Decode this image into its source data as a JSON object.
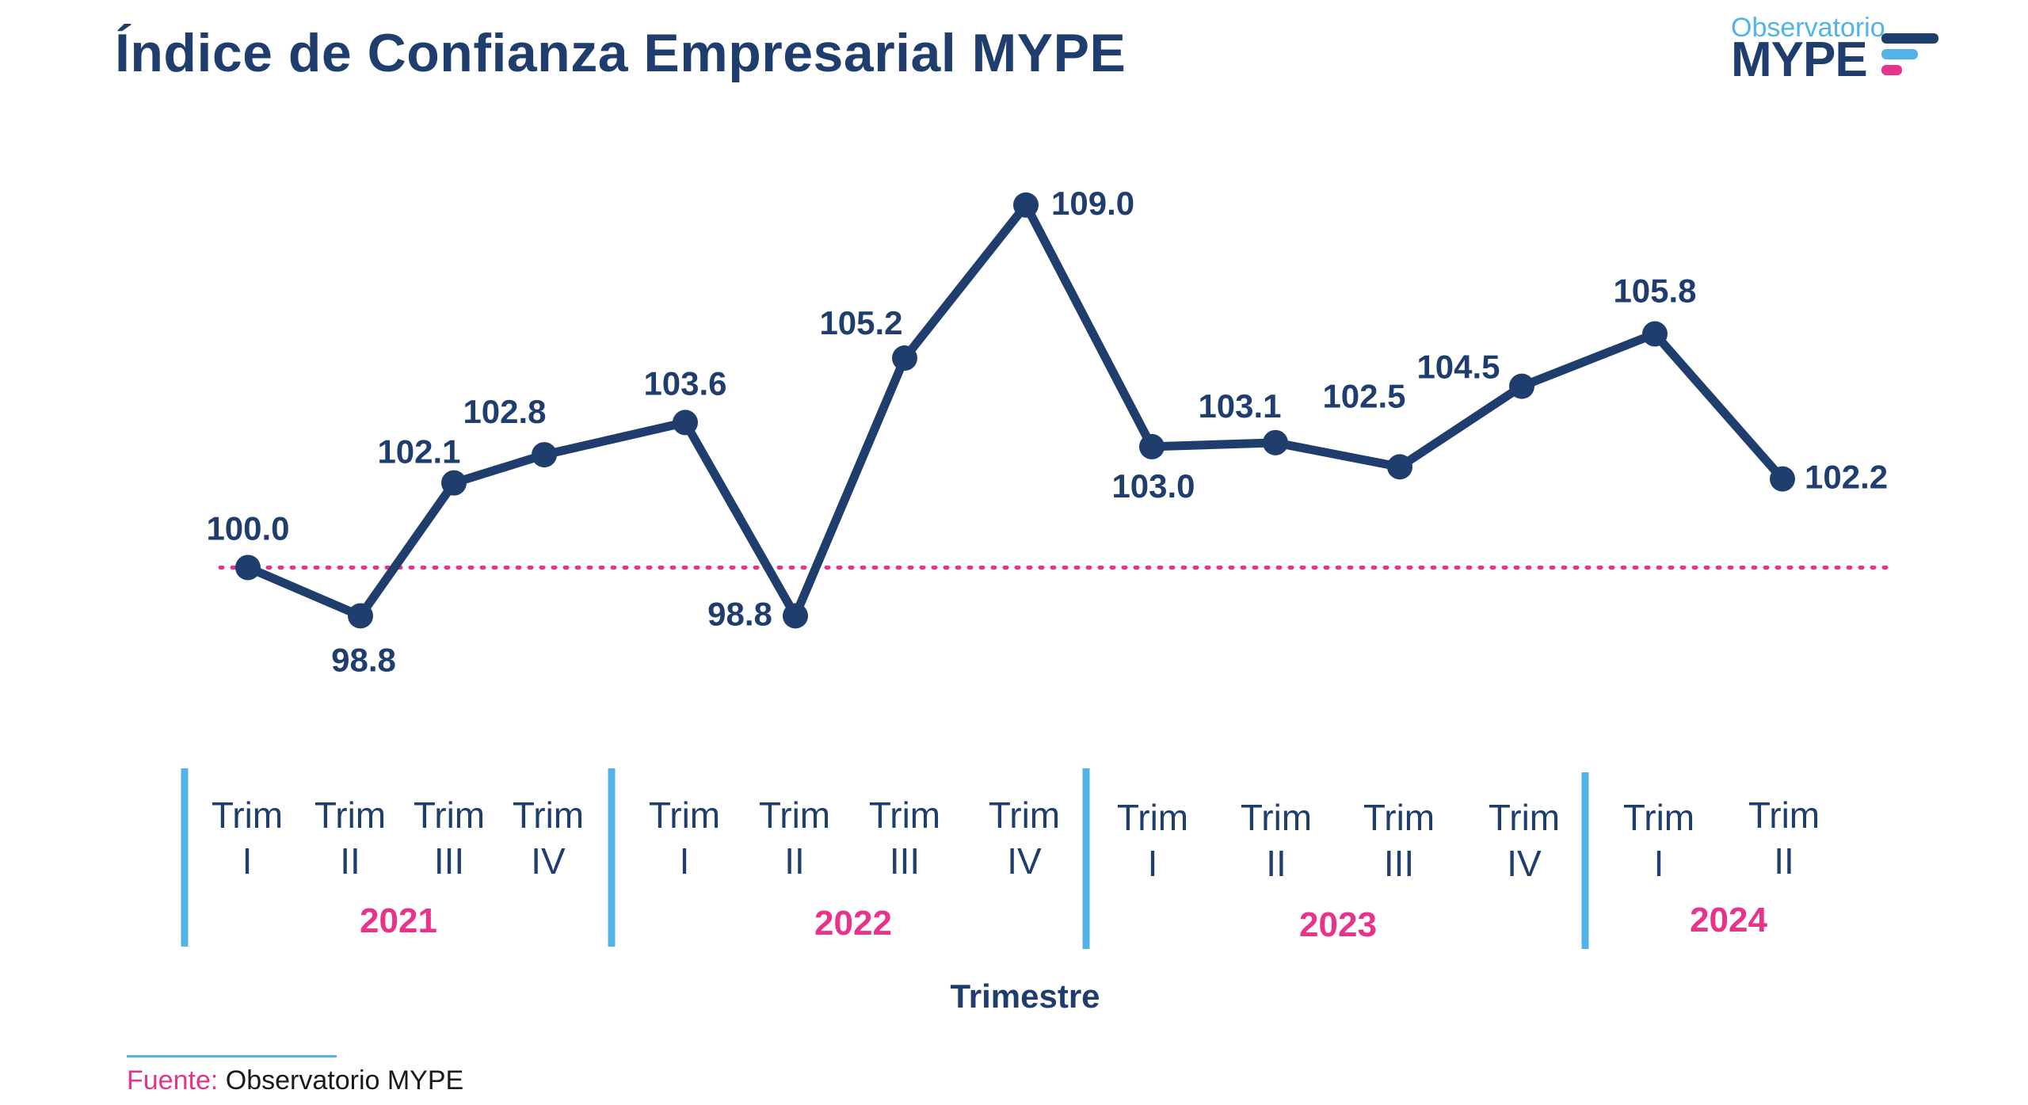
{
  "title": "Índice de Confianza Empresarial MYPE",
  "logo": {
    "top_text": "Observatorio",
    "main_text": "MYPE",
    "colors": [
      "#1f3e6e",
      "#52b4e6",
      "#e8338a"
    ]
  },
  "source": {
    "label": "Fuente:",
    "value": "Observatorio MYPE"
  },
  "colors": {
    "line": "#1f3e6e",
    "reference": "#e8338a",
    "year": "#e8338a",
    "separator": "#52b4e6"
  },
  "chart_data": {
    "type": "line",
    "title": "Índice de Confianza Empresarial MYPE",
    "xlabel": "Trimestre",
    "ylabel": "",
    "ylim": [
      97,
      110
    ],
    "reference_line": 100,
    "years": [
      {
        "label": "2021",
        "quarters": 4
      },
      {
        "label": "2022",
        "quarters": 4
      },
      {
        "label": "2023",
        "quarters": 4
      },
      {
        "label": "2024",
        "quarters": 2
      }
    ],
    "categories": [
      {
        "top": "Trim",
        "bottom": "I"
      },
      {
        "top": "Trim",
        "bottom": "II"
      },
      {
        "top": "Trim",
        "bottom": "III"
      },
      {
        "top": "Trim",
        "bottom": "IV"
      },
      {
        "top": "Trim",
        "bottom": "I"
      },
      {
        "top": "Trim",
        "bottom": "II"
      },
      {
        "top": "Trim",
        "bottom": "III"
      },
      {
        "top": "Trim",
        "bottom": "IV"
      },
      {
        "top": "Trim",
        "bottom": "I"
      },
      {
        "top": "Trim",
        "bottom": "II"
      },
      {
        "top": "Trim",
        "bottom": "III"
      },
      {
        "top": "Trim",
        "bottom": "IV"
      },
      {
        "top": "Trim",
        "bottom": "I"
      },
      {
        "top": "Trim",
        "bottom": "II"
      }
    ],
    "series": [
      {
        "name": "Índice de Confianza Empresarial MYPE",
        "values": [
          100.0,
          98.8,
          102.1,
          102.8,
          103.6,
          98.8,
          105.2,
          109.0,
          103.0,
          103.1,
          102.5,
          104.5,
          105.8,
          102.2
        ],
        "labels": [
          "100.0",
          "98.8",
          "102.1",
          "102.8",
          "103.6",
          "98.8",
          "105.2",
          "109.0",
          "103.0",
          "103.1",
          "102.5",
          "104.5",
          "105.8",
          "102.2"
        ]
      }
    ]
  }
}
